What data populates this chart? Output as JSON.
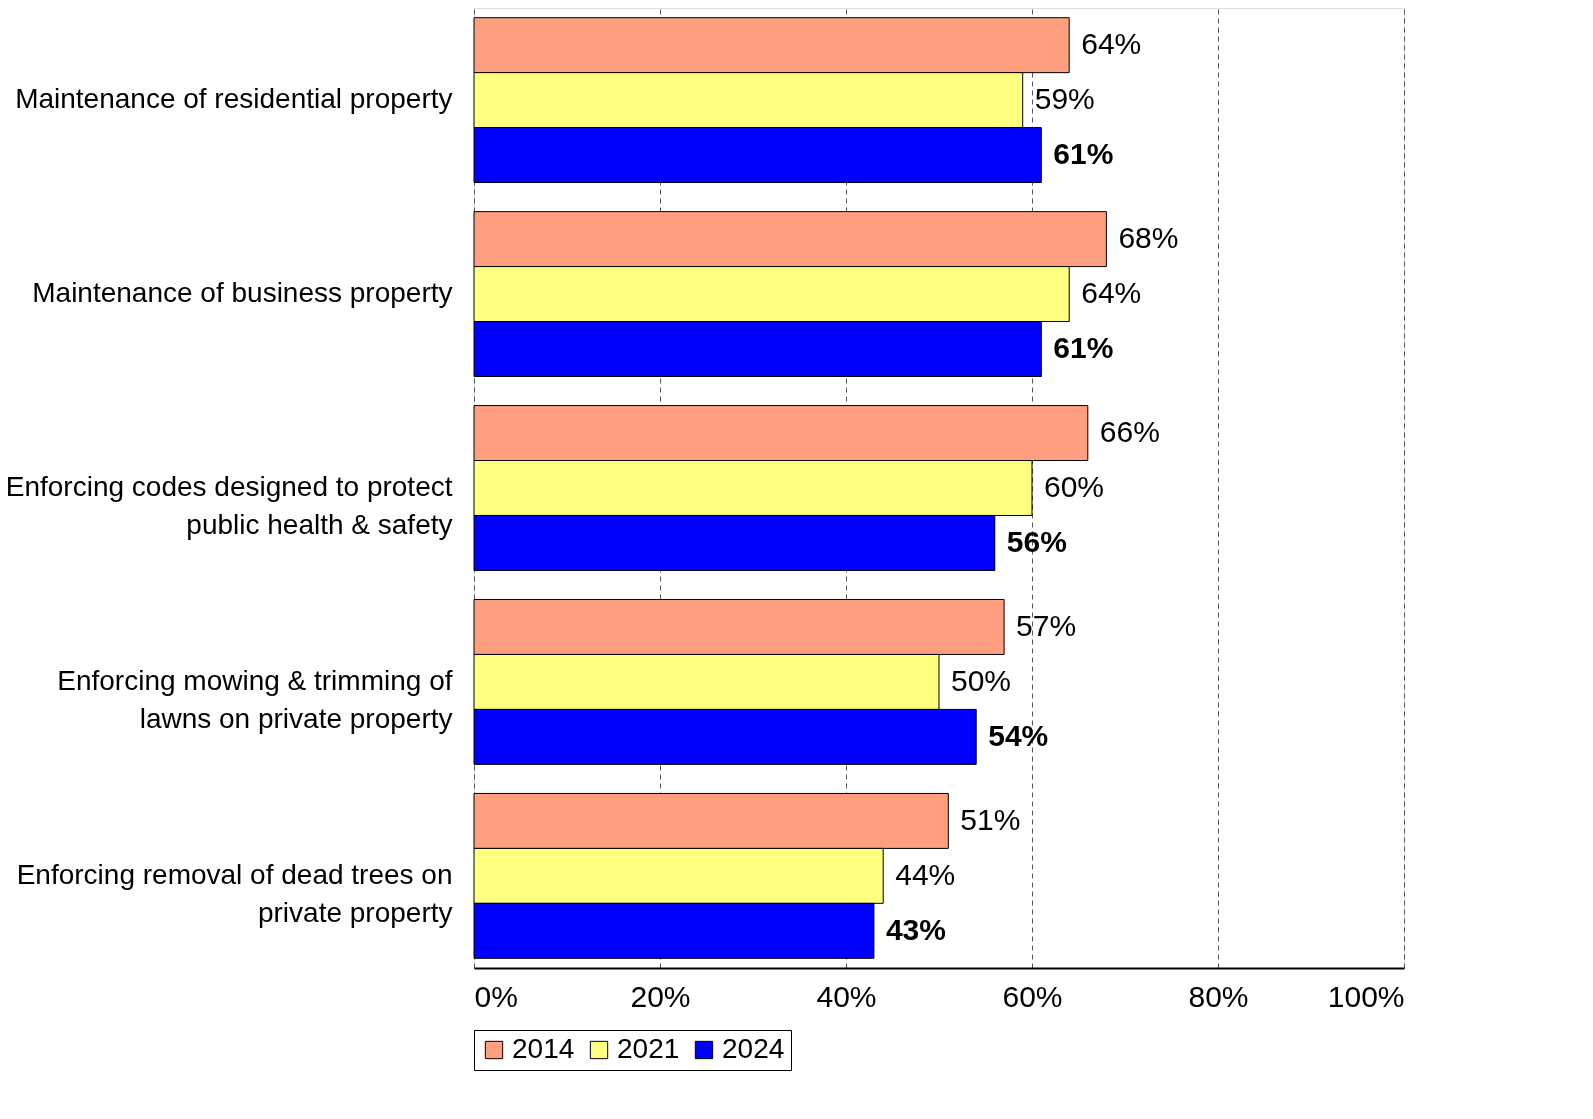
{
  "chart_data": {
    "type": "bar",
    "orientation": "horizontal",
    "categories": [
      "Maintenance of residential property",
      "Maintenance of business property",
      "Enforcing codes designed to protect\npublic health & safety",
      "Enforcing mowing & trimming of\nlawns on private property",
      "Enforcing removal of dead trees on\nprivate property"
    ],
    "series": [
      {
        "name": "2014",
        "color": "#ff9f80",
        "values": [
          64,
          68,
          66,
          57,
          51
        ],
        "value_labels": [
          "64%",
          "68%",
          "66%",
          "57%",
          "51%"
        ]
      },
      {
        "name": "2021",
        "color": "#ffff80",
        "values": [
          59,
          64,
          60,
          50,
          44
        ],
        "value_labels": [
          "59%",
          "64%",
          "60%",
          "50%",
          "44%"
        ]
      },
      {
        "name": "2024",
        "color": "#0000ff",
        "values": [
          61,
          61,
          56,
          54,
          43
        ],
        "value_labels": [
          "61%",
          "61%",
          "56%",
          "54%",
          "43%"
        ]
      }
    ],
    "xlim": [
      0,
      100
    ],
    "xticks": [
      {
        "value": 0,
        "label": "0%"
      },
      {
        "value": 20,
        "label": "20%"
      },
      {
        "value": 40,
        "label": "40%"
      },
      {
        "value": 60,
        "label": "60%"
      },
      {
        "value": 80,
        "label": "80%"
      },
      {
        "value": 100,
        "label": "100%"
      }
    ],
    "grid": "x",
    "legend": "bottom"
  }
}
